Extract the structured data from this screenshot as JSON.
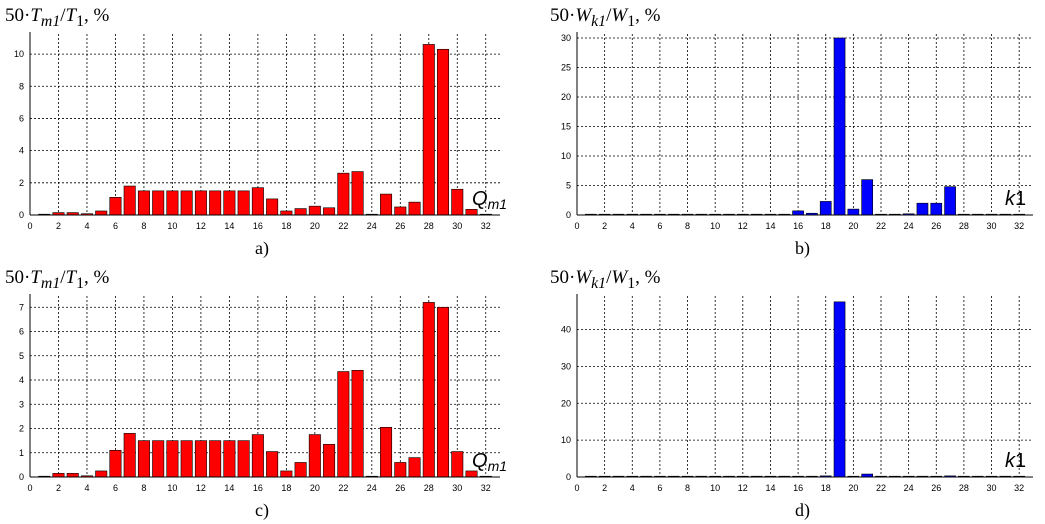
{
  "panels": [
    {
      "caption": "a)",
      "ylabel_prefix": "50·",
      "ylabel_num": "T",
      "ylabel_num_sub": "m1",
      "ylabel_den": "T",
      "ylabel_den_sub": "1",
      "ylabel_suffix": ", %",
      "xlabel_main": "Q",
      "xlabel_sub": "m1"
    },
    {
      "caption": "b)",
      "ylabel_prefix": "50·",
      "ylabel_num": "W",
      "ylabel_num_sub": "k1",
      "ylabel_den": "W",
      "ylabel_den_sub": "1",
      "ylabel_suffix": ", %",
      "xlabel_main": "k",
      "xlabel_sub": "1"
    },
    {
      "caption": "c)",
      "ylabel_prefix": "50·",
      "ylabel_num": "T",
      "ylabel_num_sub": "m1",
      "ylabel_den": "T",
      "ylabel_den_sub": "1",
      "ylabel_suffix": ", %",
      "xlabel_main": "Q",
      "xlabel_sub": "m1"
    },
    {
      "caption": "d)",
      "ylabel_prefix": "50·",
      "ylabel_num": "W",
      "ylabel_num_sub": "k1",
      "ylabel_den": "W",
      "ylabel_den_sub": "1",
      "ylabel_suffix": ", %",
      "xlabel_main": "k",
      "xlabel_sub": "1"
    }
  ],
  "colors": {
    "red_bar": "#ff0000",
    "blue_bar": "#0000ff",
    "grid": "#000000"
  },
  "chart_data": [
    {
      "type": "bar",
      "panel": "a)",
      "xlim": [
        0,
        33
      ],
      "ylim": [
        0,
        11
      ],
      "xticks": [
        0,
        2,
        4,
        6,
        8,
        10,
        12,
        14,
        16,
        18,
        20,
        22,
        24,
        26,
        28,
        30,
        32
      ],
      "yticks": [
        0,
        2,
        4,
        6,
        8,
        10
      ],
      "grid": true,
      "color": "#ff0000",
      "x": [
        1,
        2,
        3,
        4,
        5,
        6,
        7,
        8,
        9,
        10,
        11,
        12,
        13,
        14,
        15,
        16,
        17,
        18,
        19,
        20,
        21,
        22,
        23,
        24,
        25,
        26,
        27,
        28,
        29,
        30,
        31,
        32
      ],
      "values": [
        0.03,
        0.15,
        0.15,
        0.08,
        0.25,
        1.1,
        1.8,
        1.5,
        1.5,
        1.5,
        1.5,
        1.5,
        1.5,
        1.5,
        1.5,
        1.7,
        1.0,
        0.25,
        0.4,
        0.55,
        0.45,
        2.6,
        2.7,
        0.02,
        1.3,
        0.5,
        0.8,
        10.6,
        10.3,
        1.6,
        0.35,
        0.02
      ]
    },
    {
      "type": "bar",
      "panel": "b)",
      "xlim": [
        0,
        33
      ],
      "ylim": [
        0,
        30
      ],
      "xticks": [
        0,
        2,
        4,
        6,
        8,
        10,
        12,
        14,
        16,
        18,
        20,
        22,
        24,
        26,
        28,
        30,
        32
      ],
      "yticks": [
        0,
        5,
        10,
        15,
        20,
        25,
        30
      ],
      "grid": true,
      "color": "#0000ff",
      "x": [
        1,
        2,
        3,
        4,
        5,
        6,
        7,
        8,
        9,
        10,
        11,
        12,
        13,
        14,
        15,
        16,
        17,
        18,
        19,
        20,
        21,
        22,
        23,
        24,
        25,
        26,
        27,
        28,
        29,
        30,
        31,
        32
      ],
      "values": [
        0.05,
        0.05,
        0.05,
        0.05,
        0.05,
        0.05,
        0.05,
        0.05,
        0.05,
        0.05,
        0.05,
        0.05,
        0.05,
        0.05,
        0.05,
        0.7,
        0.3,
        2.3,
        30,
        1.0,
        6.0,
        0.1,
        0.1,
        0.2,
        2.0,
        2.0,
        4.8,
        0.1,
        0.1,
        0.05,
        0.05,
        0.05
      ]
    },
    {
      "type": "bar",
      "panel": "c)",
      "xlim": [
        0,
        33
      ],
      "ylim": [
        0,
        7.3
      ],
      "xticks": [
        0,
        2,
        4,
        6,
        8,
        10,
        12,
        14,
        16,
        18,
        20,
        22,
        24,
        26,
        28,
        30,
        32
      ],
      "yticks": [
        0,
        1,
        2,
        3,
        4,
        5,
        6,
        7
      ],
      "grid": true,
      "color": "#ff0000",
      "x": [
        1,
        2,
        3,
        4,
        5,
        6,
        7,
        8,
        9,
        10,
        11,
        12,
        13,
        14,
        15,
        16,
        17,
        18,
        19,
        20,
        21,
        22,
        23,
        24,
        25,
        26,
        27,
        28,
        29,
        30,
        31,
        32
      ],
      "values": [
        0.02,
        0.15,
        0.15,
        0.05,
        0.25,
        1.1,
        1.8,
        1.5,
        1.5,
        1.5,
        1.5,
        1.5,
        1.5,
        1.5,
        1.5,
        1.75,
        1.05,
        0.25,
        0.6,
        1.75,
        1.35,
        4.35,
        4.4,
        0.02,
        2.05,
        0.6,
        0.8,
        7.2,
        7.0,
        1.05,
        0.25,
        0.02
      ]
    },
    {
      "type": "bar",
      "panel": "d)",
      "xlim": [
        0,
        33
      ],
      "ylim": [
        0,
        48
      ],
      "xticks": [
        0,
        2,
        4,
        6,
        8,
        10,
        12,
        14,
        16,
        18,
        20,
        22,
        24,
        26,
        28,
        30,
        32
      ],
      "yticks": [
        0,
        10,
        20,
        30,
        40
      ],
      "grid": true,
      "color": "#0000ff",
      "x": [
        1,
        2,
        3,
        4,
        5,
        6,
        7,
        8,
        9,
        10,
        11,
        12,
        13,
        14,
        15,
        16,
        17,
        18,
        19,
        20,
        21,
        22,
        23,
        24,
        25,
        26,
        27,
        28,
        29,
        30,
        31,
        32
      ],
      "values": [
        0.05,
        0.05,
        0.05,
        0.05,
        0.05,
        0.05,
        0.05,
        0.05,
        0.05,
        0.05,
        0.05,
        0.05,
        0.05,
        0.05,
        0.05,
        0.05,
        0.05,
        0.3,
        47.5,
        0.1,
        0.8,
        0.1,
        0.05,
        0.05,
        0.05,
        0.05,
        0.3,
        0.05,
        0.05,
        0.05,
        0.05,
        0.05
      ]
    }
  ]
}
